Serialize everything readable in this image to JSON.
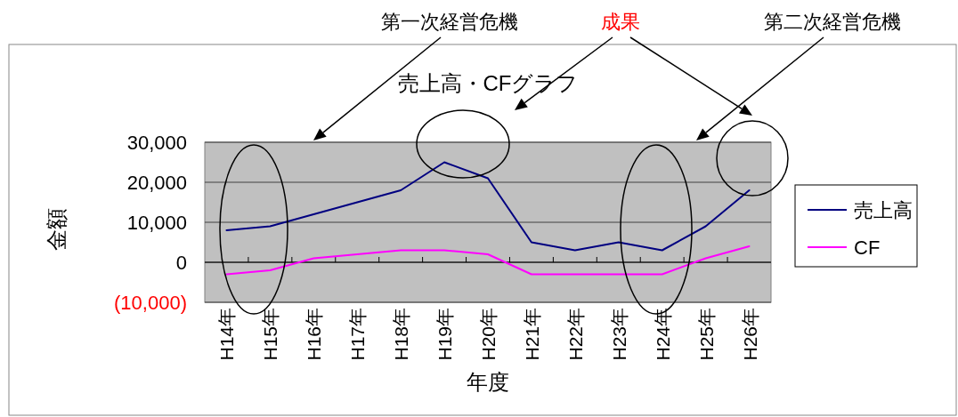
{
  "chart_data": {
    "type": "line",
    "title": "売上高・CFグラフ",
    "xlabel": "年度",
    "ylabel": "金額",
    "categories": [
      "H14年",
      "H15年",
      "H16年",
      "H17年",
      "H18年",
      "H19年",
      "H20年",
      "H21年",
      "H22年",
      "H23年",
      "H24年",
      "H25年",
      "H26年"
    ],
    "series": [
      {
        "name": "売上高",
        "color": "#000080",
        "values": [
          8000,
          9000,
          12000,
          15000,
          18000,
          25000,
          21000,
          5000,
          3000,
          5000,
          3000,
          9000,
          18000
        ]
      },
      {
        "name": "CF",
        "color": "#ff00ff",
        "values": [
          -3000,
          -2000,
          1000,
          2000,
          3000,
          3000,
          2000,
          -3000,
          -3000,
          -3000,
          -3000,
          1000,
          4000
        ]
      }
    ],
    "ylim": [
      -10000,
      30000
    ],
    "yticks": [
      {
        "value": -10000,
        "label": "(10,000)"
      },
      {
        "value": 0,
        "label": "0"
      },
      {
        "value": 10000,
        "label": "10,000"
      },
      {
        "value": 20000,
        "label": "20,000"
      },
      {
        "value": 30000,
        "label": "30,000"
      }
    ],
    "grid": "y",
    "legend": "right",
    "marker": "none",
    "line_style": "solid",
    "annotations": [
      "第一次経営危機",
      "成果",
      "第二次経営危機"
    ]
  }
}
